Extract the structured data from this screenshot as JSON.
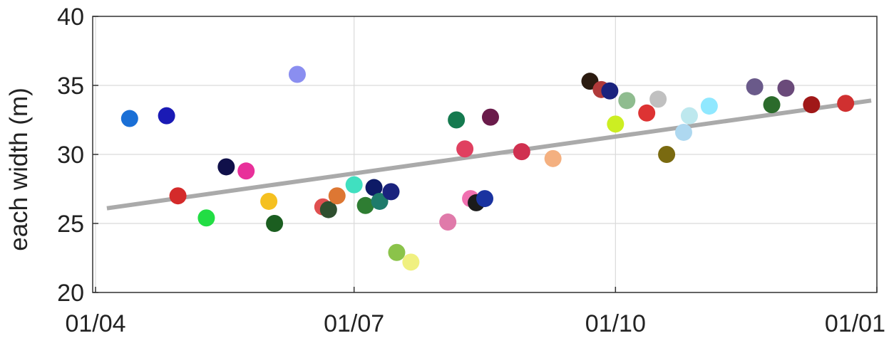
{
  "chart_data": {
    "type": "scatter",
    "title": "",
    "xlabel": "",
    "ylabel": "Reach width (m)",
    "ylabel_visible": "each width (m)",
    "ylim": [
      20,
      40
    ],
    "yticks": [
      20,
      25,
      30,
      35,
      40
    ],
    "xlim": [
      "2020-03-31",
      "2021-01-01"
    ],
    "xticks": [
      {
        "date": "2020-04-01",
        "label": "01/04"
      },
      {
        "date": "2020-07-01",
        "label": "01/07"
      },
      {
        "date": "2020-10-01",
        "label": "01/10"
      },
      {
        "date": "2021-01-01",
        "label": "01/01"
      }
    ],
    "grid": true,
    "trend_line": {
      "color": "#aaaaaa",
      "start": {
        "x": "2020-04-05",
        "y": 26.1
      },
      "end": {
        "x": "2020-12-30",
        "y": 33.9
      }
    },
    "points": [
      {
        "x": "2020-04-13",
        "y": 32.6,
        "color": "#1a6fd6"
      },
      {
        "x": "2020-04-26",
        "y": 32.8,
        "color": "#1a1ab5"
      },
      {
        "x": "2020-04-30",
        "y": 27.0,
        "color": "#d42a2a"
      },
      {
        "x": "2020-05-10",
        "y": 25.4,
        "color": "#22dd44"
      },
      {
        "x": "2020-05-17",
        "y": 29.1,
        "color": "#10104a"
      },
      {
        "x": "2020-05-24",
        "y": 28.8,
        "color": "#e8309a"
      },
      {
        "x": "2020-06-01",
        "y": 26.6,
        "color": "#f5c020"
      },
      {
        "x": "2020-06-03",
        "y": 25.0,
        "color": "#1b5e20"
      },
      {
        "x": "2020-06-11",
        "y": 35.8,
        "color": "#8a8ef0"
      },
      {
        "x": "2020-06-20",
        "y": 26.2,
        "color": "#e05050"
      },
      {
        "x": "2020-06-22",
        "y": 26.0,
        "color": "#2f4f2f"
      },
      {
        "x": "2020-06-25",
        "y": 27.0,
        "color": "#dd7733"
      },
      {
        "x": "2020-07-01",
        "y": 27.8,
        "color": "#40e0c0"
      },
      {
        "x": "2020-07-05",
        "y": 26.3,
        "color": "#2e7d32"
      },
      {
        "x": "2020-07-08",
        "y": 27.6,
        "color": "#0d1a66"
      },
      {
        "x": "2020-07-10",
        "y": 26.6,
        "color": "#1e7b6b"
      },
      {
        "x": "2020-07-14",
        "y": 27.3,
        "color": "#1a237e"
      },
      {
        "x": "2020-07-16",
        "y": 22.9,
        "color": "#8bc34a"
      },
      {
        "x": "2020-07-21",
        "y": 22.2,
        "color": "#f0f080"
      },
      {
        "x": "2020-08-03",
        "y": 25.1,
        "color": "#e07aaa"
      },
      {
        "x": "2020-08-06",
        "y": 32.5,
        "color": "#157a4f"
      },
      {
        "x": "2020-08-09",
        "y": 30.4,
        "color": "#e04060"
      },
      {
        "x": "2020-08-11",
        "y": 26.8,
        "color": "#f070b0"
      },
      {
        "x": "2020-08-13",
        "y": 26.5,
        "color": "#1b1b1b"
      },
      {
        "x": "2020-08-16",
        "y": 26.8,
        "color": "#1a33a0"
      },
      {
        "x": "2020-08-18",
        "y": 32.7,
        "color": "#6a1b4a"
      },
      {
        "x": "2020-08-29",
        "y": 30.2,
        "color": "#d03050"
      },
      {
        "x": "2020-09-09",
        "y": 29.7,
        "color": "#f4b080"
      },
      {
        "x": "2020-09-22",
        "y": 35.3,
        "color": "#2b1b10"
      },
      {
        "x": "2020-09-26",
        "y": 34.7,
        "color": "#b03a3a"
      },
      {
        "x": "2020-09-29",
        "y": 34.6,
        "color": "#1a237e"
      },
      {
        "x": "2020-10-01",
        "y": 32.2,
        "color": "#ccee22"
      },
      {
        "x": "2020-10-05",
        "y": 33.9,
        "color": "#8fbc8f"
      },
      {
        "x": "2020-10-12",
        "y": 33.0,
        "color": "#dd3333"
      },
      {
        "x": "2020-10-16",
        "y": 34.0,
        "color": "#c0c0c0"
      },
      {
        "x": "2020-10-19",
        "y": 30.0,
        "color": "#7a6a10"
      },
      {
        "x": "2020-10-25",
        "y": 31.6,
        "color": "#aed8f0"
      },
      {
        "x": "2020-10-27",
        "y": 32.8,
        "color": "#bde8ee"
      },
      {
        "x": "2020-11-03",
        "y": 33.5,
        "color": "#90e8ff"
      },
      {
        "x": "2020-11-19",
        "y": 34.9,
        "color": "#6a5a8a"
      },
      {
        "x": "2020-11-25",
        "y": 33.6,
        "color": "#2b6b2b"
      },
      {
        "x": "2020-11-30",
        "y": 34.8,
        "color": "#6a4a7a"
      },
      {
        "x": "2020-12-09",
        "y": 33.6,
        "color": "#a01818"
      },
      {
        "x": "2020-12-21",
        "y": 33.7,
        "color": "#d03030"
      }
    ]
  }
}
